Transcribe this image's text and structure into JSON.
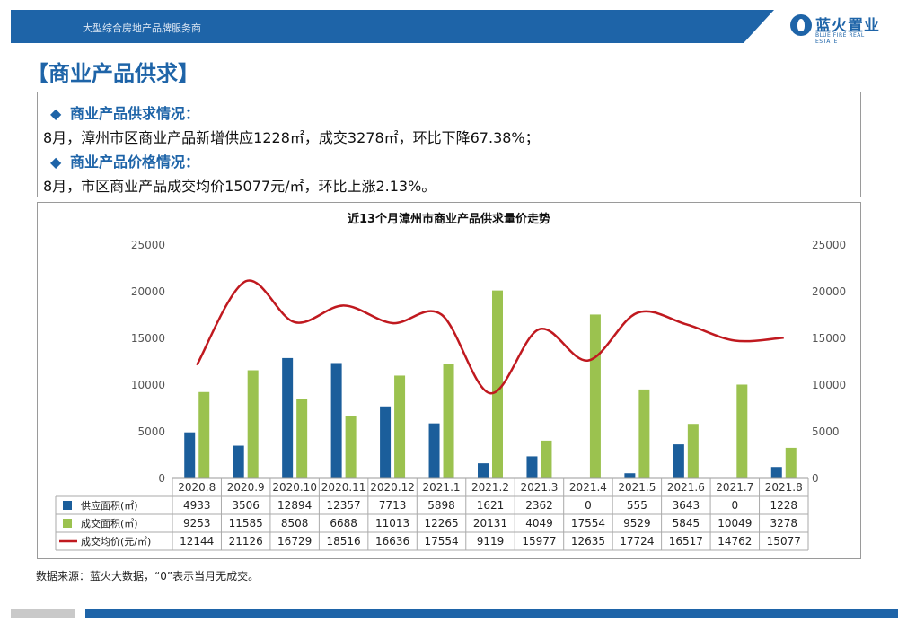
{
  "header": {
    "subtitle": "大型综合房地产品牌服务商",
    "logo_cn": "蓝火置业",
    "logo_en": "BLUE FIRE REAL ESTATE"
  },
  "page_title": "【商业产品供求】",
  "info": {
    "supply_heading": "商业产品供求情况：",
    "supply_text": "8月，漳州市区商业产品新增供应1228㎡，成交3278㎡，环比下降67.38%；",
    "price_heading": "商业产品价格情况：",
    "price_text": "8月，市区商业产品成交均价15077元/㎡，环比上涨2.13%。"
  },
  "source": "数据来源：蓝火大数据，“0”表示当月无成交。",
  "colors": {
    "supply": "#1b5e9b",
    "deal": "#9bc24f",
    "price": "#c0191f",
    "brand": "#1e64a8"
  },
  "chart_data": {
    "type": "bar",
    "title": "近13个月漳州市商业产品供求量价走势",
    "categories": [
      "2020.8",
      "2020.9",
      "2020.10",
      "2020.11",
      "2020.12",
      "2021.1",
      "2021.2",
      "2021.3",
      "2021.4",
      "2021.5",
      "2021.6",
      "2021.7",
      "2021.8"
    ],
    "y_ticks": [
      "0",
      "5000",
      "10000",
      "15000",
      "20000",
      "25000"
    ],
    "ylim": [
      0,
      25000
    ],
    "y2lim": [
      0,
      25000
    ],
    "grid": false,
    "legend": "table-left",
    "series": [
      {
        "name": "供应面积(㎡)",
        "type": "bar",
        "axis": "left",
        "values": [
          4933,
          3506,
          12894,
          12357,
          7713,
          5898,
          1621,
          2362,
          0,
          555,
          3643,
          0,
          1228
        ]
      },
      {
        "name": "成交面积(㎡)",
        "type": "bar",
        "axis": "left",
        "values": [
          9253,
          11585,
          8508,
          6688,
          11013,
          12265,
          20131,
          4049,
          17554,
          9529,
          5845,
          10049,
          3278
        ]
      },
      {
        "name": "成交均价(元/㎡)",
        "type": "line",
        "axis": "right",
        "values": [
          12144,
          21126,
          16729,
          18516,
          16636,
          17554,
          9119,
          15977,
          12635,
          17724,
          16517,
          14762,
          15077
        ]
      }
    ]
  }
}
